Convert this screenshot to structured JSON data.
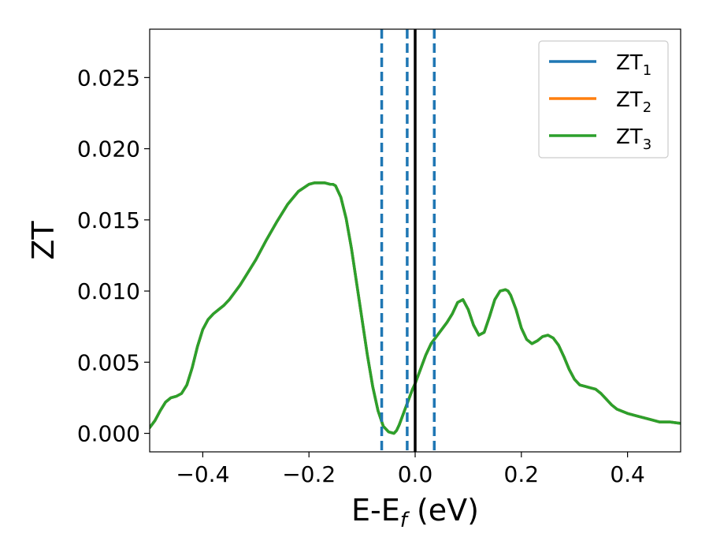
{
  "chart_data": {
    "type": "line",
    "xlabel": "E-E",
    "xlabel_sub": "f",
    "xlabel_suffix": " (eV)",
    "ylabel": "ZT",
    "xlim": [
      -0.5,
      0.5
    ],
    "ylim": [
      -0.0013,
      0.0284
    ],
    "x_ticks": [
      -0.4,
      -0.2,
      0.0,
      0.2,
      0.4
    ],
    "x_tick_labels": [
      "−0.4",
      "−0.2",
      "0.0",
      "0.2",
      "0.4"
    ],
    "y_ticks": [
      0.0,
      0.005,
      0.01,
      0.015,
      0.02,
      0.025
    ],
    "y_tick_labels": [
      "0.000",
      "0.005",
      "0.010",
      "0.015",
      "0.020",
      "0.025"
    ],
    "grid": false,
    "legend_position": "top-right",
    "series": [
      {
        "name": "ZT",
        "name_sub": "1",
        "color": "#1f77b4",
        "x": [
          -0.5,
          -0.49,
          -0.48,
          -0.47,
          -0.46,
          -0.45,
          -0.44,
          -0.43,
          -0.42,
          -0.41,
          -0.4,
          -0.39,
          -0.38,
          -0.37,
          -0.36,
          -0.35,
          -0.34,
          -0.33,
          -0.32,
          -0.3,
          -0.28,
          -0.26,
          -0.24,
          -0.22,
          -0.2,
          -0.19,
          -0.18,
          -0.17,
          -0.16,
          -0.155,
          -0.15,
          -0.14,
          -0.13,
          -0.12,
          -0.11,
          -0.1,
          -0.09,
          -0.08,
          -0.07,
          -0.06,
          -0.05,
          -0.04,
          -0.035,
          -0.03,
          -0.025,
          -0.02,
          -0.015,
          -0.01,
          -0.005,
          0.0,
          0.01,
          0.02,
          0.03,
          0.04,
          0.05,
          0.06,
          0.07,
          0.08,
          0.09,
          0.1,
          0.11,
          0.12,
          0.13,
          0.14,
          0.15,
          0.16,
          0.17,
          0.175,
          0.18,
          0.19,
          0.2,
          0.21,
          0.22,
          0.23,
          0.24,
          0.25,
          0.26,
          0.27,
          0.28,
          0.29,
          0.3,
          0.31,
          0.32,
          0.33,
          0.34,
          0.35,
          0.36,
          0.37,
          0.38,
          0.4,
          0.42,
          0.44,
          0.46,
          0.48,
          0.5
        ],
        "y": [
          0.0004,
          0.0009,
          0.0016,
          0.0022,
          0.0025,
          0.0026,
          0.0028,
          0.0034,
          0.0046,
          0.0061,
          0.0073,
          0.008,
          0.0084,
          0.0087,
          0.009,
          0.0094,
          0.0099,
          0.0104,
          0.011,
          0.0122,
          0.0136,
          0.0149,
          0.0161,
          0.017,
          0.0175,
          0.0176,
          0.0176,
          0.0176,
          0.0175,
          0.0175,
          0.0174,
          0.0166,
          0.0151,
          0.013,
          0.0105,
          0.008,
          0.0055,
          0.0033,
          0.0016,
          0.0005,
          0.0001,
          0.0,
          0.0002,
          0.0006,
          0.0011,
          0.0016,
          0.0021,
          0.0026,
          0.0031,
          0.0035,
          0.0045,
          0.0055,
          0.0063,
          0.0068,
          0.0073,
          0.0078,
          0.0084,
          0.0092,
          0.0094,
          0.0087,
          0.0076,
          0.0069,
          0.0071,
          0.0082,
          0.0094,
          0.01,
          0.0101,
          0.01,
          0.0097,
          0.0087,
          0.0074,
          0.0066,
          0.0063,
          0.0065,
          0.0068,
          0.0069,
          0.0067,
          0.0062,
          0.0054,
          0.0045,
          0.0038,
          0.0034,
          0.0033,
          0.0032,
          0.0031,
          0.0028,
          0.0024,
          0.002,
          0.0017,
          0.0014,
          0.0012,
          0.001,
          0.0008,
          0.0008,
          0.0007
        ]
      },
      {
        "name": "ZT",
        "name_sub": "2",
        "color": "#ff7f0e",
        "x": [
          -0.5,
          -0.49,
          -0.48,
          -0.47,
          -0.46,
          -0.45,
          -0.44,
          -0.43,
          -0.42,
          -0.41,
          -0.4,
          -0.39,
          -0.38,
          -0.37,
          -0.36,
          -0.35,
          -0.34,
          -0.33,
          -0.32,
          -0.3,
          -0.28,
          -0.26,
          -0.24,
          -0.22,
          -0.2,
          -0.19,
          -0.18,
          -0.17,
          -0.16,
          -0.155,
          -0.15,
          -0.14,
          -0.13,
          -0.12,
          -0.11,
          -0.1,
          -0.09,
          -0.08,
          -0.07,
          -0.06,
          -0.05,
          -0.04,
          -0.035,
          -0.03,
          -0.025,
          -0.02,
          -0.015,
          -0.01,
          -0.005,
          0.0,
          0.01,
          0.02,
          0.03,
          0.04,
          0.05,
          0.06,
          0.07,
          0.08,
          0.09,
          0.1,
          0.11,
          0.12,
          0.13,
          0.14,
          0.15,
          0.16,
          0.17,
          0.175,
          0.18,
          0.19,
          0.2,
          0.21,
          0.22,
          0.23,
          0.24,
          0.25,
          0.26,
          0.27,
          0.28,
          0.29,
          0.3,
          0.31,
          0.32,
          0.33,
          0.34,
          0.35,
          0.36,
          0.37,
          0.38,
          0.4,
          0.42,
          0.44,
          0.46,
          0.48,
          0.5
        ],
        "y": [
          0.0004,
          0.0009,
          0.0016,
          0.0022,
          0.0025,
          0.0026,
          0.0028,
          0.0034,
          0.0046,
          0.0061,
          0.0073,
          0.008,
          0.0084,
          0.0087,
          0.009,
          0.0094,
          0.0099,
          0.0104,
          0.011,
          0.0122,
          0.0136,
          0.0149,
          0.0161,
          0.017,
          0.0175,
          0.0176,
          0.0176,
          0.0176,
          0.0175,
          0.0175,
          0.0174,
          0.0166,
          0.0151,
          0.013,
          0.0105,
          0.008,
          0.0055,
          0.0033,
          0.0016,
          0.0005,
          0.0001,
          0.0,
          0.0002,
          0.0006,
          0.0011,
          0.0016,
          0.0021,
          0.0026,
          0.0031,
          0.0035,
          0.0045,
          0.0055,
          0.0063,
          0.0068,
          0.0073,
          0.0078,
          0.0084,
          0.0092,
          0.0094,
          0.0087,
          0.0076,
          0.0069,
          0.0071,
          0.0082,
          0.0094,
          0.01,
          0.0101,
          0.01,
          0.0097,
          0.0087,
          0.0074,
          0.0066,
          0.0063,
          0.0065,
          0.0068,
          0.0069,
          0.0067,
          0.0062,
          0.0054,
          0.0045,
          0.0038,
          0.0034,
          0.0033,
          0.0032,
          0.0031,
          0.0028,
          0.0024,
          0.002,
          0.0017,
          0.0014,
          0.0012,
          0.001,
          0.0008,
          0.0008,
          0.0007
        ]
      },
      {
        "name": "ZT",
        "name_sub": "3",
        "color": "#2ca02c",
        "x": [
          -0.5,
          -0.49,
          -0.48,
          -0.47,
          -0.46,
          -0.45,
          -0.44,
          -0.43,
          -0.42,
          -0.41,
          -0.4,
          -0.39,
          -0.38,
          -0.37,
          -0.36,
          -0.35,
          -0.34,
          -0.33,
          -0.32,
          -0.3,
          -0.28,
          -0.26,
          -0.24,
          -0.22,
          -0.2,
          -0.19,
          -0.18,
          -0.17,
          -0.16,
          -0.155,
          -0.15,
          -0.14,
          -0.13,
          -0.12,
          -0.11,
          -0.1,
          -0.09,
          -0.08,
          -0.07,
          -0.06,
          -0.05,
          -0.04,
          -0.035,
          -0.03,
          -0.025,
          -0.02,
          -0.015,
          -0.01,
          -0.005,
          0.0,
          0.01,
          0.02,
          0.03,
          0.04,
          0.05,
          0.06,
          0.07,
          0.08,
          0.09,
          0.1,
          0.11,
          0.12,
          0.13,
          0.14,
          0.15,
          0.16,
          0.17,
          0.175,
          0.18,
          0.19,
          0.2,
          0.21,
          0.22,
          0.23,
          0.24,
          0.25,
          0.26,
          0.27,
          0.28,
          0.29,
          0.3,
          0.31,
          0.32,
          0.33,
          0.34,
          0.35,
          0.36,
          0.37,
          0.38,
          0.4,
          0.42,
          0.44,
          0.46,
          0.48,
          0.5
        ],
        "y": [
          0.0004,
          0.0009,
          0.0016,
          0.0022,
          0.0025,
          0.0026,
          0.0028,
          0.0034,
          0.0046,
          0.0061,
          0.0073,
          0.008,
          0.0084,
          0.0087,
          0.009,
          0.0094,
          0.0099,
          0.0104,
          0.011,
          0.0122,
          0.0136,
          0.0149,
          0.0161,
          0.017,
          0.0175,
          0.0176,
          0.0176,
          0.0176,
          0.0175,
          0.0175,
          0.0174,
          0.0166,
          0.0151,
          0.013,
          0.0105,
          0.008,
          0.0055,
          0.0033,
          0.0016,
          0.0005,
          0.0001,
          0.0,
          0.0002,
          0.0006,
          0.0011,
          0.0016,
          0.0021,
          0.0026,
          0.0031,
          0.0035,
          0.0045,
          0.0055,
          0.0063,
          0.0068,
          0.0073,
          0.0078,
          0.0084,
          0.0092,
          0.0094,
          0.0087,
          0.0076,
          0.0069,
          0.0071,
          0.0082,
          0.0094,
          0.01,
          0.0101,
          0.01,
          0.0097,
          0.0087,
          0.0074,
          0.0066,
          0.0063,
          0.0065,
          0.0068,
          0.0069,
          0.0067,
          0.0062,
          0.0054,
          0.0045,
          0.0038,
          0.0034,
          0.0033,
          0.0032,
          0.0031,
          0.0028,
          0.0024,
          0.002,
          0.0017,
          0.0014,
          0.0012,
          0.001,
          0.0008,
          0.0008,
          0.0007
        ]
      }
    ],
    "vlines": [
      {
        "x": -0.063,
        "style": "dashed",
        "color": "#1f77b4"
      },
      {
        "x": -0.015,
        "style": "dashed",
        "color": "#1f77b4"
      },
      {
        "x": 0.036,
        "style": "dashed",
        "color": "#1f77b4"
      },
      {
        "x": 0.0,
        "style": "solid",
        "color": "#000000"
      }
    ]
  }
}
